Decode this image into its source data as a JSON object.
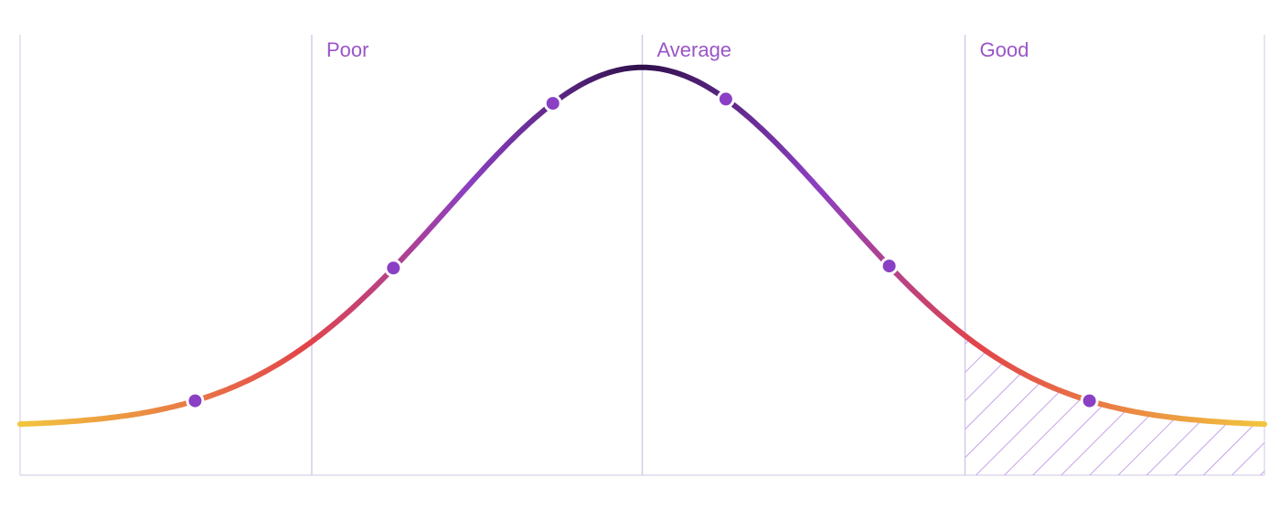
{
  "chart_data": {
    "type": "line",
    "title": "",
    "xlabel": "",
    "ylabel": "",
    "xlim": [
      -3.2,
      3.2
    ],
    "ylim": [
      0,
      1.08
    ],
    "grid": false,
    "curve": {
      "kind": "normal-distribution",
      "mean": 0,
      "std": 1,
      "peak": 1
    },
    "zones": [
      {
        "label": "Poor",
        "x": -1.7
      },
      {
        "label": "Average",
        "x": 0
      },
      {
        "label": "Good",
        "x": 1.66
      }
    ],
    "markers": [
      {
        "x": -2.3,
        "y": 0.28
      },
      {
        "x": -1.28,
        "y": 0.64
      },
      {
        "x": -0.46,
        "y": 0.92
      },
      {
        "x": 0.43,
        "y": 0.92
      },
      {
        "x": 1.27,
        "y": 0.64
      },
      {
        "x": 2.3,
        "y": 0.28
      }
    ],
    "shaded_region": {
      "from": 1.66,
      "to": 3.2,
      "pattern": "diagonal-hatch"
    },
    "colors": {
      "curve_tail": "#f2c53d",
      "curve_mid": "#e2444a",
      "curve_shoulder": "#8b3fc1",
      "curve_peak": "#2f0f4a",
      "marker": "#8a3fc4",
      "marker_outline": "#ffffff",
      "zone_line": "#d3c8e8",
      "zone_label": "#9a55c8",
      "hatch": "#c7a2ea",
      "axis": "#d8d2e6"
    }
  }
}
